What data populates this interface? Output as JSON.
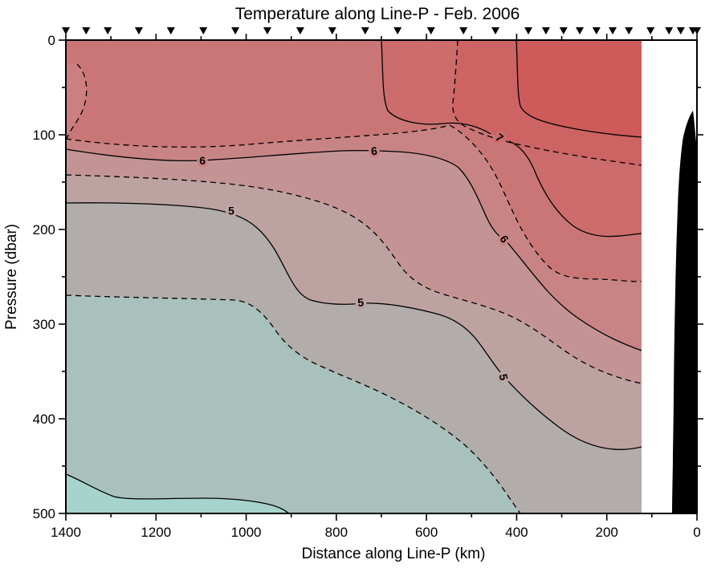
{
  "title": "Temperature along Line-P - Feb. 2006",
  "chart_data": {
    "type": "heatmap",
    "subtype": "filled-contour-ocean-section",
    "title": "Temperature along Line-P - Feb. 2006",
    "xlabel": "Distance along Line-P (km)",
    "ylabel": "Pressure (dbar)",
    "x_axis": {
      "min": 0,
      "max": 1400,
      "reversed": true,
      "major_tick_interval_km": 200,
      "minor_tick_interval_km": 100,
      "major_tick_labels": [
        "1400",
        "1200",
        "1000",
        "800",
        "600",
        "400",
        "200",
        "0"
      ],
      "major_tick_km": [
        1400,
        1200,
        1000,
        800,
        600,
        400,
        200,
        0
      ],
      "minor_tick_km": [
        1300,
        1100,
        900,
        700,
        500,
        300,
        100
      ]
    },
    "y_axis": {
      "min": 0,
      "max": 500,
      "increasing_downward": true,
      "major_tick_interval_dbar": 100,
      "minor_tick_interval_dbar": 50,
      "major_tick_labels": [
        "0",
        "100",
        "200",
        "300",
        "400",
        "500"
      ],
      "major_tick_dbar": [
        0,
        100,
        200,
        300,
        400,
        500
      ],
      "minor_tick_dbar": [
        50,
        150,
        250,
        350,
        450
      ],
      "right_tick_dbar": [
        50,
        100,
        150,
        200,
        250,
        300,
        350,
        400,
        450,
        500,
        550
      ]
    },
    "contour_levels_c": {
      "solid": [
        4,
        5,
        6,
        7
      ],
      "dashed": [
        4.5,
        5.5,
        6.5,
        7.5
      ],
      "unit": "deg C"
    },
    "contour_labels": [
      {
        "text": "6",
        "km": 1097,
        "dbar": 127,
        "rot": 0,
        "halo": "#C88484"
      },
      {
        "text": "6",
        "km": 716,
        "dbar": 117,
        "rot": -5,
        "halo": "#C88484"
      },
      {
        "text": "7",
        "km": 438,
        "dbar": 103,
        "rot": 38,
        "halo": "#CC6C6C"
      },
      {
        "text": "6",
        "km": 427,
        "dbar": 210,
        "rot": 55,
        "halo": "#C88484"
      },
      {
        "text": "5",
        "km": 1033,
        "dbar": 180,
        "rot": 0,
        "halo": "#BFA6A6"
      },
      {
        "text": "5",
        "km": 746,
        "dbar": 277,
        "rot": -5,
        "halo": "#BDA2A2"
      },
      {
        "text": "5",
        "km": 429,
        "dbar": 356,
        "rot": 78,
        "halo": "#BDA2A2"
      }
    ],
    "station_markers_km": [
      1400,
      1355,
      1307,
      1238,
      1167,
      1095,
      1024,
      953,
      880,
      809,
      736,
      664,
      590,
      518,
      447,
      374,
      335,
      296,
      260,
      223,
      187,
      151,
      103,
      62,
      36,
      9,
      0
    ],
    "data_extent_km": [
      124,
      1400
    ],
    "band_colors": {
      "warmest": "#CF5A5A",
      "b7_5": "#CD6363",
      "b7_0": "#CC6C6C",
      "b6_5": "#CA7676",
      "b6_0": "#C88484",
      "b5_5": "#C49494",
      "b5_0": "#BDA2A2",
      "b4_5": "#B2ACAA",
      "b4_0": "#A9C1BC",
      "coldest": "#A7D3CD",
      "surface_eddy": "#CC8080"
    },
    "bathymetry_color": "#000000",
    "grid": false,
    "legend": "none"
  }
}
